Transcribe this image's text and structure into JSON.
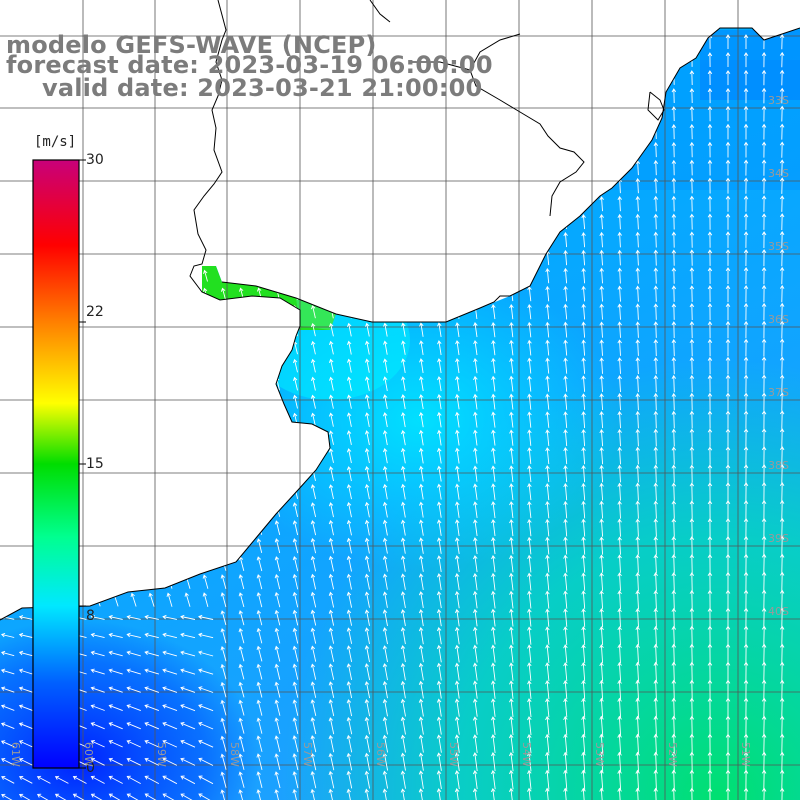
{
  "title": {
    "line1": "modelo GEFS-WAVE (NCEP)",
    "line2": "forecast date: 2023-03-19 06:00:00",
    "line3": "valid date: 2023-03-21 21:00:00"
  },
  "colorbar": {
    "unit": "[m/s]",
    "ticks": [
      "30",
      "22",
      "15",
      "8",
      "0"
    ],
    "tick_values": [
      30,
      22,
      15,
      8,
      0
    ],
    "range": [
      0,
      30
    ],
    "colors": [
      "#0000ff",
      "#0080ff",
      "#00e8ff",
      "#00e000",
      "#ffff00",
      "#ff8000",
      "#ff0000",
      "#c8007a"
    ]
  },
  "map": {
    "land_color": "#ffffff",
    "coastline_color": "#000000",
    "grid_color": "#555555",
    "lon_labels": [
      "61W",
      "60W",
      "59W",
      "58W",
      "57W",
      "56W",
      "55W",
      "54W",
      "53W",
      "52W",
      "51W"
    ],
    "lat_labels": [
      "33S",
      "34S",
      "35S",
      "36S",
      "37S",
      "38S",
      "39S",
      "40S"
    ],
    "field": "wind speed with direction arrows",
    "dominant_wind_direction": "from south-southeast"
  }
}
